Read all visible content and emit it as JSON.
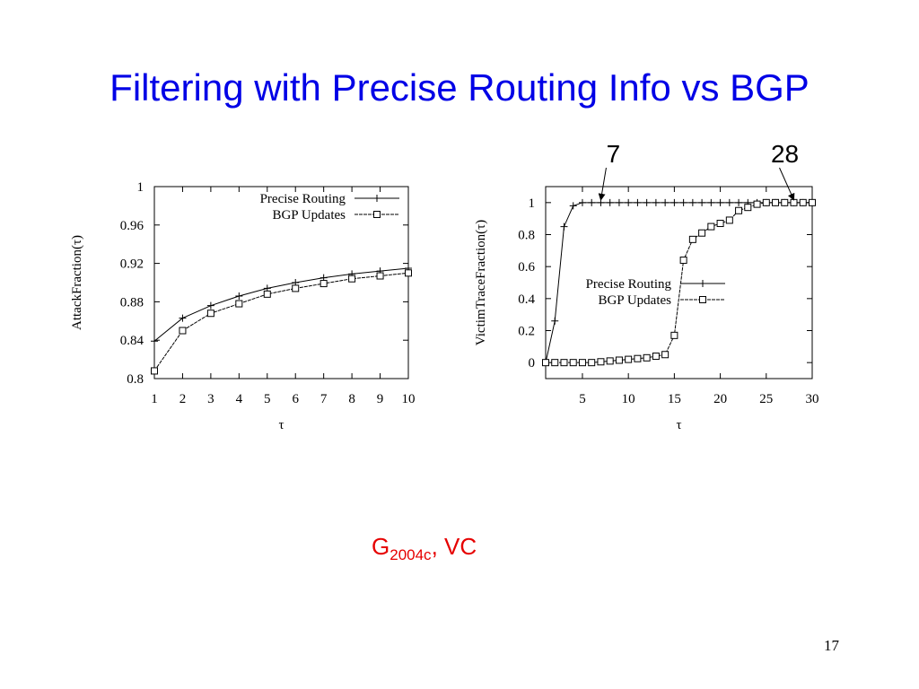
{
  "title": "Filtering with Precise Routing Info vs BGP",
  "caption": {
    "main": "G",
    "sub": "2004c",
    "rest": ", VC"
  },
  "page_number": "17",
  "chart_data": [
    {
      "type": "line",
      "xlabel": "τ",
      "ylabel": "AttackFraction(τ)",
      "x": [
        1,
        2,
        3,
        4,
        5,
        6,
        7,
        8,
        9,
        10
      ],
      "xlim": [
        1,
        10
      ],
      "xticks": [
        1,
        2,
        3,
        4,
        5,
        6,
        7,
        8,
        9,
        10
      ],
      "ylim": [
        0.8,
        1
      ],
      "yticks": [
        0.8,
        0.84,
        0.88,
        0.92,
        0.96,
        1
      ],
      "legend": "top-right",
      "series": [
        {
          "name": "Precise Routing",
          "color": "#000000",
          "marker": "plus",
          "values": [
            0.839,
            0.863,
            0.876,
            0.886,
            0.894,
            0.9,
            0.905,
            0.909,
            0.912,
            0.915
          ]
        },
        {
          "name": "BGP Updates",
          "color": "#000000",
          "marker": "square",
          "values": [
            0.808,
            0.85,
            0.868,
            0.878,
            0.888,
            0.894,
            0.899,
            0.904,
            0.907,
            0.91
          ]
        }
      ]
    },
    {
      "type": "line",
      "xlabel": "τ",
      "ylabel": "VictimTraceFraction(τ)",
      "x": [
        1,
        2,
        3,
        4,
        5,
        6,
        7,
        8,
        9,
        10,
        11,
        12,
        13,
        14,
        15,
        16,
        17,
        18,
        19,
        20,
        21,
        22,
        23,
        24,
        25,
        26,
        27,
        28,
        29,
        30
      ],
      "xlim": [
        1,
        30
      ],
      "xticks": [
        5,
        10,
        15,
        20,
        25,
        30
      ],
      "ylim": [
        -0.1,
        1.1
      ],
      "yticks": [
        0,
        0.2,
        0.4,
        0.6,
        0.8,
        1
      ],
      "legend": "center-left",
      "annotations": [
        {
          "text": "7",
          "x": 7,
          "y": 1
        },
        {
          "text": "28",
          "x": 28,
          "y": 1
        }
      ],
      "series": [
        {
          "name": "Precise Routing",
          "color": "#000000",
          "marker": "plus",
          "values": [
            0,
            0.26,
            0.85,
            0.98,
            1,
            1,
            1,
            1,
            1,
            1,
            1,
            1,
            1,
            1,
            1,
            1,
            1,
            1,
            1,
            1,
            1,
            1,
            1,
            1,
            1,
            1,
            1,
            1,
            1,
            1
          ]
        },
        {
          "name": "BGP Updates",
          "color": "#000000",
          "marker": "square",
          "values": [
            0,
            0,
            0,
            0,
            0,
            0,
            0.005,
            0.01,
            0.015,
            0.02,
            0.025,
            0.03,
            0.04,
            0.05,
            0.17,
            0.64,
            0.77,
            0.81,
            0.85,
            0.87,
            0.89,
            0.95,
            0.97,
            0.99,
            1,
            1,
            1,
            1,
            1,
            1
          ]
        }
      ]
    }
  ]
}
